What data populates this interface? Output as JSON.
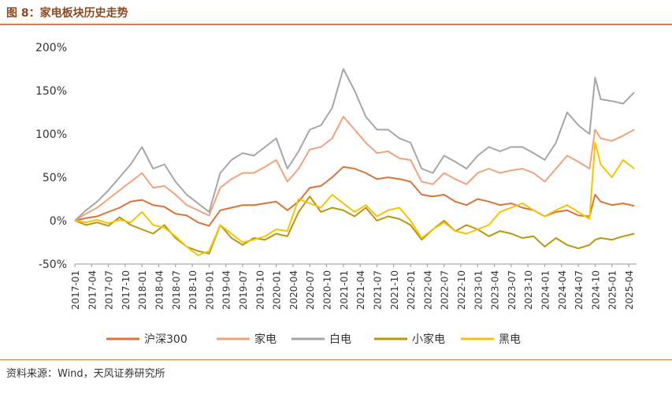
{
  "header": {
    "title": "图 8：家电板块历史走势"
  },
  "footer": {
    "source": "资料来源：Wind，天风证券研究所"
  },
  "chart_data": {
    "type": "line",
    "title": "",
    "xlabel": "",
    "ylabel": "",
    "ylim": [
      -0.5,
      2.0
    ],
    "y_ticks": [
      -0.5,
      0,
      0.5,
      1.0,
      1.5,
      2.0
    ],
    "y_tick_labels": [
      "-50%",
      "0%",
      "50%",
      "100%",
      "150%",
      "200%"
    ],
    "x_tick_labels": [
      "2017-01",
      "2017-04",
      "2017-07",
      "2017-10",
      "2018-01",
      "2018-04",
      "2018-07",
      "2018-10",
      "2019-01",
      "2019-04",
      "2019-07",
      "2019-10",
      "2020-01",
      "2020-04",
      "2020-07",
      "2020-10",
      "2021-01",
      "2021-04",
      "2021-07",
      "2021-10",
      "2022-01",
      "2022-04",
      "2022-07",
      "2022-10",
      "2023-01",
      "2023-04",
      "2023-07",
      "2023-10",
      "2024-01",
      "2024-04",
      "2024-07",
      "2024-10",
      "2025-01",
      "2025-04"
    ],
    "grid": false,
    "legend_position": "bottom",
    "x": [
      "2017-01",
      "2017-03",
      "2017-05",
      "2017-07",
      "2017-09",
      "2017-11",
      "2018-01",
      "2018-03",
      "2018-05",
      "2018-07",
      "2018-09",
      "2018-11",
      "2019-01",
      "2019-03",
      "2019-05",
      "2019-07",
      "2019-09",
      "2019-11",
      "2020-01",
      "2020-03",
      "2020-05",
      "2020-07",
      "2020-09",
      "2020-11",
      "2021-01",
      "2021-03",
      "2021-05",
      "2021-07",
      "2021-09",
      "2021-11",
      "2022-01",
      "2022-03",
      "2022-05",
      "2022-07",
      "2022-09",
      "2022-11",
      "2023-01",
      "2023-03",
      "2023-05",
      "2023-07",
      "2023-09",
      "2023-11",
      "2024-01",
      "2024-03",
      "2024-05",
      "2024-07",
      "2024-09",
      "2024-10",
      "2024-11",
      "2025-01",
      "2025-03",
      "2025-05"
    ],
    "series": [
      {
        "name": "沪深300",
        "color": "#d9733a",
        "values": [
          0.0,
          0.03,
          0.05,
          0.1,
          0.15,
          0.22,
          0.24,
          0.18,
          0.16,
          0.08,
          0.06,
          -0.02,
          -0.06,
          0.12,
          0.15,
          0.18,
          0.18,
          0.2,
          0.22,
          0.12,
          0.22,
          0.38,
          0.4,
          0.5,
          0.62,
          0.6,
          0.55,
          0.48,
          0.5,
          0.48,
          0.45,
          0.3,
          0.28,
          0.3,
          0.22,
          0.18,
          0.25,
          0.22,
          0.18,
          0.2,
          0.15,
          0.12,
          0.05,
          0.1,
          0.12,
          0.06,
          0.05,
          0.3,
          0.22,
          0.18,
          0.2,
          0.17
        ]
      },
      {
        "name": "家电",
        "color": "#f0a37a",
        "values": [
          0.0,
          0.08,
          0.15,
          0.25,
          0.35,
          0.45,
          0.55,
          0.38,
          0.4,
          0.3,
          0.18,
          0.12,
          0.06,
          0.38,
          0.48,
          0.55,
          0.55,
          0.62,
          0.7,
          0.45,
          0.6,
          0.82,
          0.85,
          0.95,
          1.2,
          1.05,
          0.9,
          0.78,
          0.8,
          0.72,
          0.7,
          0.45,
          0.42,
          0.55,
          0.48,
          0.42,
          0.55,
          0.6,
          0.55,
          0.58,
          0.6,
          0.55,
          0.45,
          0.6,
          0.75,
          0.68,
          0.6,
          1.05,
          0.95,
          0.92,
          0.98,
          1.05
        ]
      },
      {
        "name": "白电",
        "color": "#a6a6a6",
        "values": [
          0.0,
          0.12,
          0.22,
          0.35,
          0.5,
          0.65,
          0.85,
          0.6,
          0.65,
          0.45,
          0.3,
          0.2,
          0.1,
          0.55,
          0.7,
          0.78,
          0.75,
          0.85,
          0.95,
          0.6,
          0.8,
          1.05,
          1.1,
          1.3,
          1.75,
          1.5,
          1.2,
          1.05,
          1.05,
          0.95,
          0.9,
          0.6,
          0.55,
          0.75,
          0.68,
          0.6,
          0.75,
          0.85,
          0.8,
          0.85,
          0.85,
          0.78,
          0.7,
          0.9,
          1.25,
          1.1,
          1.0,
          1.65,
          1.4,
          1.38,
          1.35,
          1.48
        ]
      },
      {
        "name": "小家电",
        "color": "#b8960c",
        "values": [
          0.0,
          -0.05,
          -0.02,
          -0.06,
          0.04,
          -0.05,
          -0.1,
          -0.15,
          -0.05,
          -0.2,
          -0.3,
          -0.35,
          -0.38,
          -0.05,
          -0.2,
          -0.28,
          -0.2,
          -0.22,
          -0.15,
          -0.18,
          0.1,
          0.28,
          0.1,
          0.15,
          0.12,
          0.05,
          0.15,
          0.0,
          0.05,
          0.02,
          -0.05,
          -0.22,
          -0.1,
          0.0,
          -0.12,
          -0.05,
          -0.1,
          -0.18,
          -0.12,
          -0.15,
          -0.2,
          -0.18,
          -0.3,
          -0.2,
          -0.28,
          -0.32,
          -0.28,
          -0.22,
          -0.2,
          -0.22,
          -0.18,
          -0.15
        ]
      },
      {
        "name": "黑电",
        "color": "#f5c400",
        "values": [
          0.0,
          -0.02,
          0.01,
          -0.03,
          0.01,
          -0.02,
          0.1,
          -0.05,
          -0.08,
          -0.18,
          -0.3,
          -0.4,
          -0.35,
          -0.05,
          -0.15,
          -0.25,
          -0.22,
          -0.18,
          -0.1,
          -0.12,
          0.25,
          0.2,
          0.15,
          0.3,
          0.2,
          0.1,
          0.18,
          0.05,
          0.12,
          0.15,
          0.0,
          -0.2,
          -0.1,
          -0.02,
          -0.12,
          -0.15,
          -0.1,
          -0.05,
          0.1,
          0.15,
          0.2,
          0.12,
          0.05,
          0.12,
          0.18,
          0.1,
          0.02,
          0.9,
          0.65,
          0.5,
          0.7,
          0.6
        ]
      }
    ]
  }
}
